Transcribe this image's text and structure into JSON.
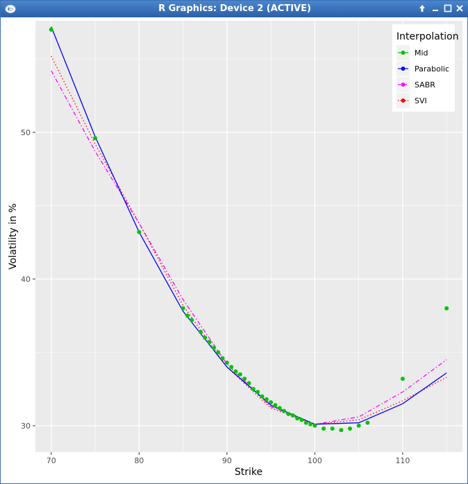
{
  "window": {
    "title": "R Graphics: Device 2 (ACTIVE)"
  },
  "icons": {
    "app": "r-logo-icon",
    "up": "arrow-up-icon",
    "minimize": "minimize-icon",
    "maximize": "maximize-icon",
    "close": "close-icon"
  },
  "colors": {
    "panel": "#ebebeb",
    "grid": "#ffffff",
    "mid": "#00c400",
    "parabolic": "#0000ff",
    "sabr": "#ff00ff",
    "svi": "#ff0000"
  },
  "chart_data": {
    "type": "line",
    "title": "",
    "xlabel": "Strike",
    "ylabel": "Volatility in %",
    "xlim": [
      68.2,
      116.8
    ],
    "ylim": [
      28.2,
      57.6
    ],
    "x_ticks": [
      70,
      80,
      90,
      100,
      110
    ],
    "y_ticks": [
      30,
      40,
      50
    ],
    "grid": true,
    "legend": {
      "title": "Interpolation",
      "placement": "top-right"
    },
    "series": [
      {
        "name": "Mid",
        "style": "points",
        "x": [
          70,
          75,
          80,
          85,
          85.5,
          86,
          87,
          87.5,
          88,
          88.5,
          89,
          89.5,
          90,
          90.5,
          91,
          91.5,
          92,
          92.5,
          93,
          93.5,
          94,
          94.5,
          95,
          95.5,
          96,
          96.5,
          97,
          97.5,
          98,
          98.5,
          99,
          99.5,
          100,
          101,
          102,
          103,
          104,
          105,
          106,
          110,
          115
        ],
        "y": [
          57,
          49.6,
          43.2,
          38,
          37.5,
          37.2,
          36.4,
          36,
          35.7,
          35.3,
          35,
          34.6,
          34.3,
          34,
          33.7,
          33.5,
          33.2,
          32.9,
          32.5,
          32.3,
          32,
          31.8,
          31.6,
          31.4,
          31.2,
          31,
          30.8,
          30.7,
          30.5,
          30.4,
          30.2,
          30.1,
          30,
          29.8,
          29.8,
          29.7,
          29.8,
          30,
          30.2,
          33.2,
          38
        ]
      },
      {
        "name": "Parabolic",
        "style": "solid",
        "x": [
          70,
          75,
          80,
          85,
          90,
          95,
          100,
          105,
          110,
          115
        ],
        "y": [
          57.2,
          49.7,
          43.2,
          37.8,
          34.0,
          31.4,
          30.1,
          30.2,
          31.5,
          33.6
        ]
      },
      {
        "name": "SABR",
        "style": "dashdot",
        "x": [
          70,
          75,
          80,
          85,
          90,
          95,
          100,
          105,
          110,
          115
        ],
        "y": [
          54.2,
          48.7,
          43.8,
          38.6,
          34.2,
          31.3,
          30.1,
          30.6,
          32.3,
          34.5
        ]
      },
      {
        "name": "SVI",
        "style": "dotted",
        "x": [
          70,
          75,
          80,
          85,
          90,
          95,
          100,
          105,
          110,
          115
        ],
        "y": [
          55.2,
          49.2,
          43.8,
          38.2,
          34.0,
          31.2,
          30.1,
          30.4,
          31.7,
          33.3
        ]
      }
    ]
  }
}
